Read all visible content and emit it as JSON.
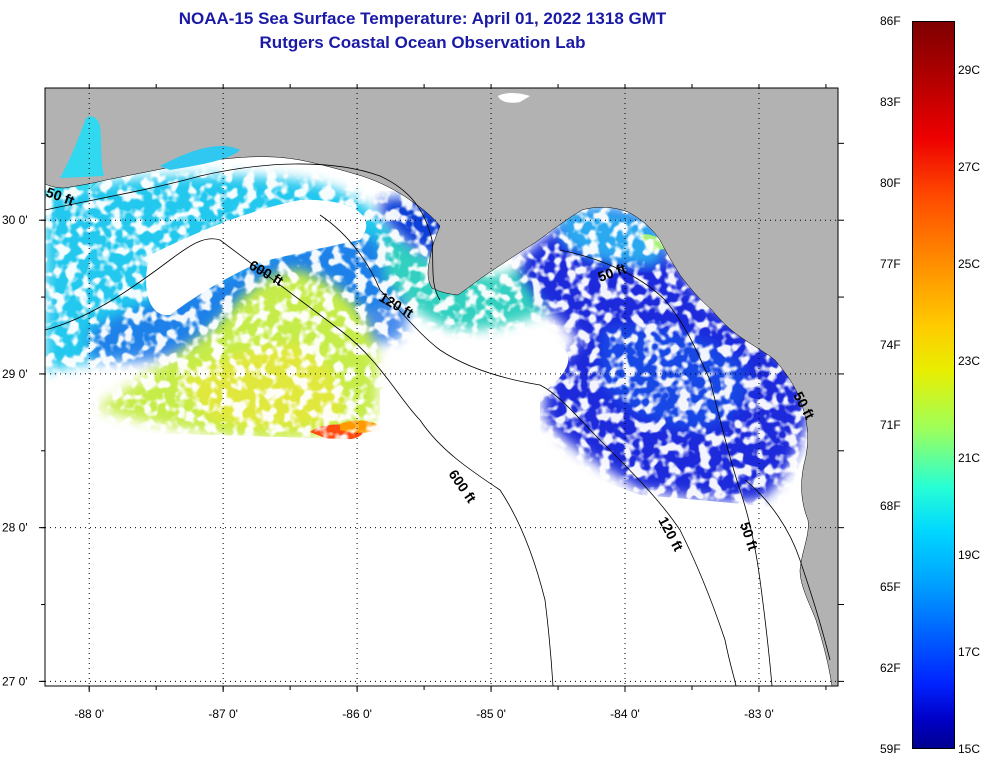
{
  "header": {
    "title": "NOAA-15 Sea Surface Temperature:  April 01, 2022 1318 GMT",
    "subtitle": "Rutgers Coastal Ocean Observation Lab"
  },
  "map": {
    "lon_range": [
      -88.33,
      -82.41
    ],
    "lat_range": [
      26.97,
      30.86
    ],
    "lon_ticks": [
      {
        "lon": -88,
        "label": "-88 0'"
      },
      {
        "lon": -87,
        "label": "-87 0'"
      },
      {
        "lon": -86,
        "label": "-86 0'"
      },
      {
        "lon": -85,
        "label": "-85 0'"
      },
      {
        "lon": -84,
        "label": "-84 0'"
      },
      {
        "lon": -83,
        "label": "-83 0'"
      }
    ],
    "lat_ticks": [
      {
        "lat": 30,
        "label": "30 0'"
      },
      {
        "lat": 29,
        "label": "29 0'"
      },
      {
        "lat": 28,
        "label": "28 0'"
      },
      {
        "lat": 27,
        "label": "27 0'"
      }
    ],
    "grid": "dotted",
    "contour_labels": [
      "50 ft",
      "600 ft",
      "120 ft",
      "50 ft",
      "600 ft",
      "120 ft",
      "50 ft",
      "50 ft"
    ],
    "colors": {
      "land": "#b2b2b2",
      "no_data": "#ffffff",
      "gridline": "#000000"
    }
  },
  "colorbar": {
    "range_f": [
      59,
      86
    ],
    "fahrenheit_labels": [
      "86F",
      "83F",
      "80F",
      "77F",
      "74F",
      "71F",
      "68F",
      "65F",
      "62F",
      "59F"
    ],
    "celsius_labels": [
      "29C",
      "27C",
      "25C",
      "23C",
      "21C",
      "19C",
      "17C",
      "15C"
    ]
  }
}
